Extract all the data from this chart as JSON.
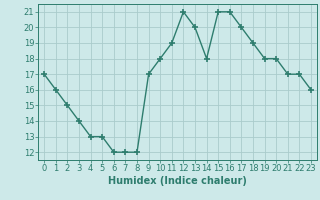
{
  "x": [
    0,
    1,
    2,
    3,
    4,
    5,
    6,
    7,
    8,
    9,
    10,
    11,
    12,
    13,
    14,
    15,
    16,
    17,
    18,
    19,
    20,
    21,
    22,
    23
  ],
  "y": [
    17,
    16,
    15,
    14,
    13,
    13,
    12,
    12,
    12,
    17,
    18,
    19,
    21,
    20,
    18,
    21,
    21,
    20,
    19,
    18,
    18,
    17,
    17,
    16
  ],
  "line_color": "#2e7d6e",
  "marker": "+",
  "marker_size": 4,
  "bg_color": "#cde9e9",
  "grid_color": "#aacccc",
  "xlabel": "Humidex (Indice chaleur)",
  "ylim": [
    11.5,
    21.5
  ],
  "xlim": [
    -0.5,
    23.5
  ],
  "yticks": [
    12,
    13,
    14,
    15,
    16,
    17,
    18,
    19,
    20,
    21
  ],
  "xticks": [
    0,
    1,
    2,
    3,
    4,
    5,
    6,
    7,
    8,
    9,
    10,
    11,
    12,
    13,
    14,
    15,
    16,
    17,
    18,
    19,
    20,
    21,
    22,
    23
  ],
  "tick_label_size": 6,
  "xlabel_size": 7,
  "line_width": 1.0
}
